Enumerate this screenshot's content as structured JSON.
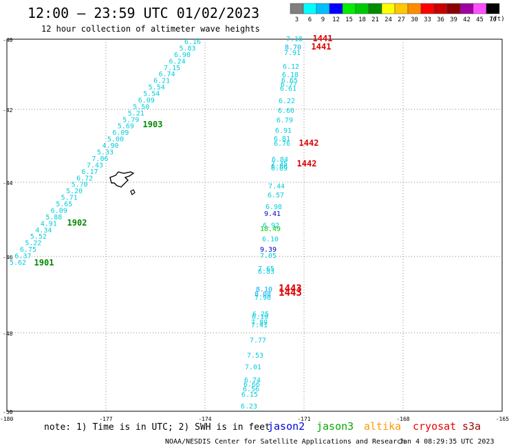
{
  "header": {
    "title": "12:00 – 23:59 UTC 01/02/2023",
    "subtitle": "12 hour collection of altimeter wave heights"
  },
  "legend": {
    "unit": "(ft)",
    "bins": [
      {
        "label": "3",
        "color": "#7f7f7f"
      },
      {
        "label": "6",
        "color": "#00ffff"
      },
      {
        "label": "9",
        "color": "#00bfff"
      },
      {
        "label": "12",
        "color": "#0000ff"
      },
      {
        "label": "15",
        "color": "#00ee00"
      },
      {
        "label": "18",
        "color": "#00c800"
      },
      {
        "label": "21",
        "color": "#008c00"
      },
      {
        "label": "24",
        "color": "#ffff00"
      },
      {
        "label": "27",
        "color": "#ffc800"
      },
      {
        "label": "30",
        "color": "#ff8c00"
      },
      {
        "label": "33",
        "color": "#ff0000"
      },
      {
        "label": "36",
        "color": "#c80000"
      },
      {
        "label": "39",
        "color": "#8c0000"
      },
      {
        "label": "42",
        "color": "#a000a0"
      },
      {
        "label": "45",
        "color": "#ff50ff"
      },
      {
        "label": "70",
        "color": "#000000"
      }
    ]
  },
  "axes": {
    "lat_labels": [
      "-40",
      "-42",
      "-44",
      "-46",
      "-48",
      "-50"
    ],
    "lon_labels": [
      "-180",
      "-177",
      "-174",
      "-171",
      "-168",
      "-165"
    ]
  },
  "tracks": {
    "west": [
      {
        "v": "6.16",
        "c": "#00ccdd"
      },
      {
        "v": "5.83",
        "c": "#00ccdd"
      },
      {
        "v": "6.90",
        "c": "#00ccdd"
      },
      {
        "v": "6.24",
        "c": "#00ccdd"
      },
      {
        "v": "7.15",
        "c": "#00ccdd"
      },
      {
        "v": "6.74",
        "c": "#00ccdd"
      },
      {
        "v": "6.21",
        "c": "#00ccdd"
      },
      {
        "v": "5.54",
        "c": "#00ccdd"
      },
      {
        "v": "5.54",
        "c": "#00ccdd"
      },
      {
        "v": "6.09",
        "c": "#00ccdd"
      },
      {
        "v": "5.50",
        "c": "#00ccdd"
      },
      {
        "v": "5.21",
        "c": "#00ccdd"
      },
      {
        "v": "5.79",
        "c": "#00ccdd"
      },
      {
        "v": "5.69",
        "c": "#00ccdd"
      },
      {
        "v": "6.09",
        "c": "#00ccdd"
      },
      {
        "v": "5.00",
        "c": "#00ccdd"
      },
      {
        "v": "4.90",
        "c": "#00ccdd"
      },
      {
        "v": "5.33",
        "c": "#00ccdd"
      },
      {
        "v": "7.06",
        "c": "#00ccdd"
      },
      {
        "v": "7.43",
        "c": "#00ccdd"
      },
      {
        "v": "6.17",
        "c": "#00ccdd"
      },
      {
        "v": "6.72",
        "c": "#00ccdd"
      },
      {
        "v": "5.70",
        "c": "#00ccdd"
      },
      {
        "v": "5.20",
        "c": "#00ccdd"
      },
      {
        "v": "5.71",
        "c": "#00ccdd"
      },
      {
        "v": "5.65",
        "c": "#00ccdd"
      },
      {
        "v": "6.09",
        "c": "#00ccdd"
      },
      {
        "v": "5.88",
        "c": "#00ccdd"
      },
      {
        "v": "4.91",
        "c": "#00ccdd"
      },
      {
        "v": "4.34",
        "c": "#00ccdd"
      },
      {
        "v": "5.52",
        "c": "#00ccdd"
      },
      {
        "v": "5.22",
        "c": "#00ccdd"
      },
      {
        "v": "6.75",
        "c": "#00ccdd"
      },
      {
        "v": "6.37",
        "c": "#00ccdd"
      },
      {
        "v": "5.62",
        "c": "#00ccdd"
      }
    ],
    "east": [
      {
        "v": "7.18",
        "c": "#00ccdd"
      },
      {
        "v": "8.70",
        "c": "#00aaee"
      },
      {
        "v": "7.91",
        "c": "#00ccdd"
      },
      {
        "v": "6.12",
        "c": "#00ccdd"
      },
      {
        "v": "6.18",
        "c": "#00ccdd"
      },
      {
        "v": "6.65",
        "c": "#00ccdd"
      },
      {
        "v": "6.77",
        "c": "#00ccdd"
      },
      {
        "v": "6.61",
        "c": "#00ccdd"
      },
      {
        "v": "6.22",
        "c": "#00ccdd"
      },
      {
        "v": "6.66",
        "c": "#00ccdd"
      },
      {
        "v": "6.79",
        "c": "#00ccdd"
      },
      {
        "v": "6.91",
        "c": "#00ccdd"
      },
      {
        "v": "6.81",
        "c": "#00ccdd"
      },
      {
        "v": "6.76",
        "c": "#00ccdd"
      },
      {
        "v": "6.84",
        "c": "#00ccdd"
      },
      {
        "v": "7.35",
        "c": "#00ccdd"
      },
      {
        "v": "6.86",
        "c": "#00ccdd"
      },
      {
        "v": "6.89",
        "c": "#00ccdd"
      },
      {
        "v": "7.44",
        "c": "#00ccdd"
      },
      {
        "v": "6.57",
        "c": "#00ccdd"
      },
      {
        "v": "6.98",
        "c": "#00ccdd"
      },
      {
        "v": "9.41",
        "c": "#0000cc"
      },
      {
        "v": "6.92",
        "c": "#00ccdd"
      },
      {
        "v": "18.49",
        "c": "#00cc00"
      },
      {
        "v": "6.10",
        "c": "#00ccdd"
      },
      {
        "v": "9.39",
        "c": "#0000cc"
      },
      {
        "v": "7.05",
        "c": "#00ccdd"
      },
      {
        "v": "7.65",
        "c": "#00ccdd"
      },
      {
        "v": "6.83",
        "c": "#00ccdd"
      },
      {
        "v": "8.10",
        "c": "#00aaee"
      },
      {
        "v": "8.08",
        "c": "#00aaee"
      },
      {
        "v": "7.90",
        "c": "#00ccdd"
      },
      {
        "v": "6.25",
        "c": "#00ccdd"
      },
      {
        "v": "6.19",
        "c": "#00ccdd"
      },
      {
        "v": "7.89",
        "c": "#00ccdd"
      },
      {
        "v": "7.41",
        "c": "#00ccdd"
      },
      {
        "v": "7.77",
        "c": "#00ccdd"
      },
      {
        "v": "7.53",
        "c": "#00ccdd"
      },
      {
        "v": "7.01",
        "c": "#00ccdd"
      },
      {
        "v": "6.74",
        "c": "#00ccdd"
      },
      {
        "v": "6.66",
        "c": "#00ccdd"
      },
      {
        "v": "6.56",
        "c": "#00ccdd"
      },
      {
        "v": "6.15",
        "c": "#00ccdd"
      },
      {
        "v": "6.23",
        "c": "#00ccdd"
      }
    ]
  },
  "time_labels": [
    {
      "text": "1903",
      "color": "#008800"
    },
    {
      "text": "1902",
      "color": "#008800"
    },
    {
      "text": "1901",
      "color": "#008800"
    },
    {
      "text": "1441",
      "color": "#dd0000"
    },
    {
      "text": "1441",
      "color": "#dd0000"
    },
    {
      "text": "1442",
      "color": "#dd0000"
    },
    {
      "text": "1442",
      "color": "#dd0000"
    },
    {
      "text": "1443",
      "color": "#dd0000"
    },
    {
      "text": "1443",
      "color": "#dd0000"
    }
  ],
  "footer": {
    "note": "note: 1) Time is in UTC; 2) SWH is in feet",
    "satellites": [
      {
        "name": "jason2",
        "color": "#0000dd"
      },
      {
        "name": "jason3",
        "color": "#00aa00"
      },
      {
        "name": "altika",
        "color": "#ff9900"
      },
      {
        "name": "cryosat",
        "color": "#ee0000"
      },
      {
        "name": "s3a",
        "color": "#990000"
      }
    ],
    "credit": "NOAA/NESDIS Center for Satellite Applications and Research",
    "timestamp": "Jan  4 08:29:35 UTC 2023"
  }
}
